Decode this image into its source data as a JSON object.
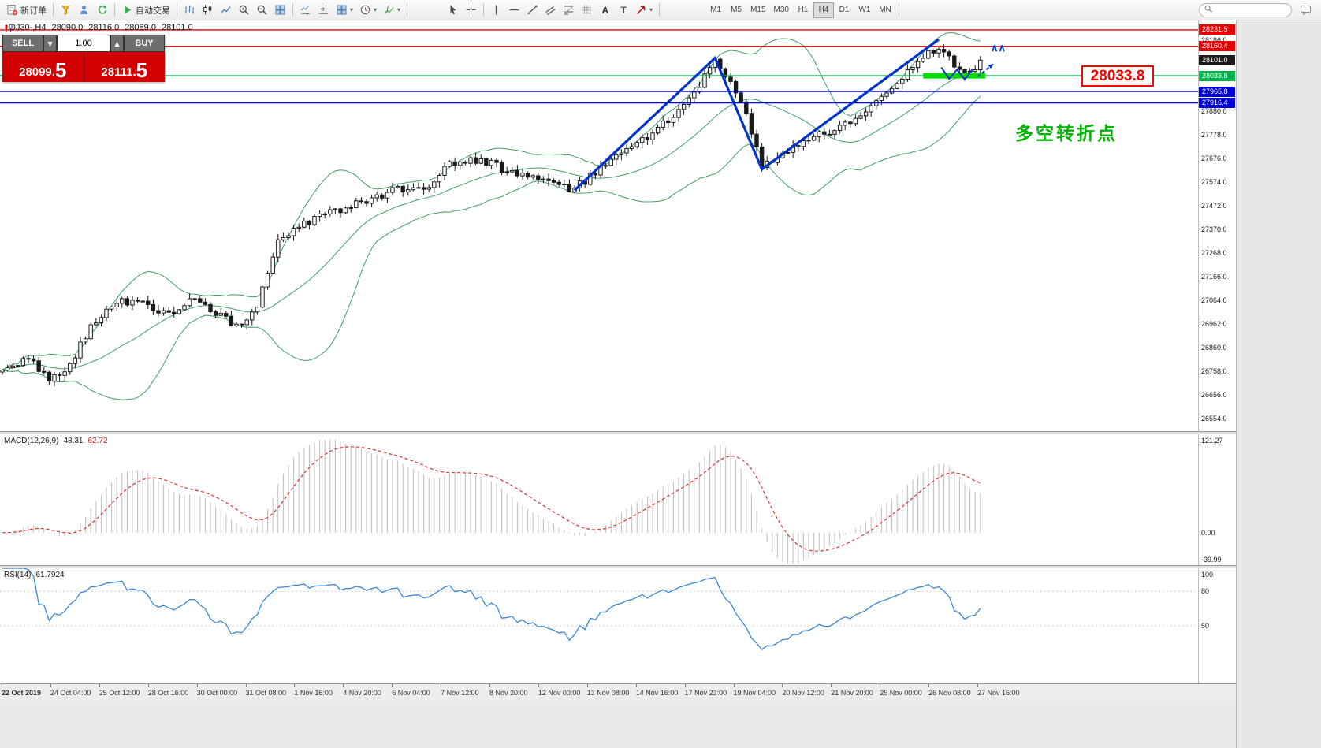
{
  "toolbar": {
    "groups": [
      {
        "items": [
          {
            "name": "new-order",
            "icon": "neworder",
            "label": "新订单"
          }
        ]
      },
      {
        "items": [
          {
            "name": "market-watch",
            "icon": "funnel"
          },
          {
            "name": "navigator",
            "icon": "person"
          },
          {
            "name": "refresh",
            "icon": "refresh"
          }
        ]
      },
      {
        "items": [
          {
            "name": "algo-trading",
            "icon": "play",
            "label": "自动交易"
          }
        ]
      },
      {
        "items": [
          {
            "name": "bar-chart",
            "icon": "bars"
          },
          {
            "name": "candlestick-chart",
            "icon": "candles"
          },
          {
            "name": "line-chart",
            "icon": "linechart"
          },
          {
            "name": "zoom-in",
            "icon": "zoomin"
          },
          {
            "name": "zoom-out",
            "icon": "zoomout"
          },
          {
            "name": "tile-windows",
            "icon": "tile"
          }
        ]
      },
      {
        "items": [
          {
            "name": "auto-scroll",
            "icon": "autoscroll"
          },
          {
            "name": "chart-shift",
            "icon": "shift"
          },
          {
            "name": "new-window",
            "icon": "tile",
            "caret": true
          },
          {
            "name": "periods",
            "icon": "clock",
            "caret": true
          },
          {
            "name": "indicators-list",
            "icon": "func",
            "caret": true
          }
        ]
      },
      {
        "space": 42,
        "items": [
          {
            "name": "cursor",
            "icon": "cursor"
          },
          {
            "name": "crosshair",
            "icon": "crosshair"
          }
        ]
      },
      {
        "items": [
          {
            "name": "vertical-line",
            "icon": "vline"
          },
          {
            "name": "horizontal-line",
            "icon": "hline"
          },
          {
            "name": "trendline",
            "icon": "trendline"
          },
          {
            "name": "equidistant-channel",
            "icon": "channel"
          },
          {
            "name": "fibonacci-retracement",
            "icon": "fibo"
          },
          {
            "name": "grid",
            "icon": "grid"
          },
          {
            "name": "text",
            "icon": "textA"
          },
          {
            "name": "text-label",
            "icon": "labelT"
          },
          {
            "name": "arrows",
            "icon": "arrowne",
            "caret": true
          }
        ]
      },
      {
        "space": 54,
        "timeframes": true
      }
    ],
    "timeframes": [
      "M1",
      "M5",
      "M15",
      "M30",
      "H1",
      "H4",
      "D1",
      "W1",
      "MN"
    ],
    "active_timeframe": "H4",
    "search_placeholder": ""
  },
  "chart_header": {
    "symbol_period": "DJ30-,H4",
    "open": "28090.0",
    "high": "28116.0",
    "low": "28089.0",
    "close": "28101.0"
  },
  "trade_panel": {
    "sell_label": "SELL",
    "buy_label": "BUY",
    "volume": "1.00",
    "sell_price": "28099.5",
    "buy_price": "28111.5"
  },
  "annotations": {
    "turning_point": "多空转折点",
    "price_callout": "28033.8",
    "caret_marks": "∧∧"
  },
  "indicators": {
    "macd": {
      "label": "MACD(12,26,9)",
      "value_main": "48.31",
      "value_signal": "62.72",
      "axis_labels": [
        {
          "text": "121.27",
          "v": 121.27
        },
        {
          "text": "0.00",
          "v": 0
        },
        {
          "text": "-39.99",
          "v": -39.99
        }
      ],
      "axis_max": 121.27,
      "axis_min": -39.99
    },
    "rsi": {
      "label": "RSI(14)",
      "value": "61.7924",
      "axis_labels": [
        {
          "text": "100",
          "v": 100
        },
        {
          "text": "80",
          "v": 80
        },
        {
          "text": "50",
          "v": 50
        }
      ],
      "levels": [
        80,
        50
      ],
      "axis_max": 100,
      "axis_min": 0
    }
  },
  "price_axis": {
    "plain_labels": [
      28186.0,
      27880.0,
      27778.0,
      27676.0,
      27574.0,
      27472.0,
      27370.0,
      27268.0,
      27166.0,
      27064.0,
      26962.0,
      26860.0,
      26758.0,
      26656.0,
      26554.0
    ]
  },
  "time_axis": {
    "labels": [
      "22 Oct 2019",
      "24 Oct 04:00",
      "25 Oct 12:00",
      "28 Oct 16:00",
      "30 Oct 00:00",
      "31 Oct 08:00",
      "1 Nov 16:00",
      "4 Nov 20:00",
      "6 Nov 04:00",
      "7 Nov 12:00",
      "8 Nov 20:00",
      "12 Nov 00:00",
      "13 Nov 08:00",
      "14 Nov 16:00",
      "17 Nov 23:00",
      "19 Nov 04:00",
      "20 Nov 12:00",
      "21 Nov 20:00",
      "25 Nov 00:00",
      "26 Nov 08:00",
      "27 Nov 16:00"
    ]
  },
  "chart_data": {
    "type": "candlestick",
    "symbol": "DJ30",
    "period": "H4",
    "ohlc_header": {
      "open": 28090.0,
      "high": 28116.0,
      "low": 28089.0,
      "close": 28101.0
    },
    "visible_price_range": [
      26500,
      28272
    ],
    "price_grid_step": 102,
    "candle_count": 189,
    "last_close": 28101.0,
    "close_anchors": [
      [
        0,
        26760
      ],
      [
        5,
        26810
      ],
      [
        9,
        26730
      ],
      [
        13,
        26780
      ],
      [
        17,
        26960
      ],
      [
        22,
        27060
      ],
      [
        28,
        27040
      ],
      [
        33,
        27000
      ],
      [
        37,
        27080
      ],
      [
        41,
        27010
      ],
      [
        45,
        26950
      ],
      [
        49,
        27040
      ],
      [
        53,
        27330
      ],
      [
        58,
        27390
      ],
      [
        64,
        27450
      ],
      [
        70,
        27500
      ],
      [
        76,
        27545
      ],
      [
        82,
        27560
      ],
      [
        86,
        27650
      ],
      [
        92,
        27675
      ],
      [
        97,
        27620
      ],
      [
        102,
        27590
      ],
      [
        106,
        27560
      ],
      [
        110,
        27545
      ],
      [
        114,
        27620
      ],
      [
        118,
        27690
      ],
      [
        122,
        27745
      ],
      [
        126,
        27805
      ],
      [
        130,
        27890
      ],
      [
        134,
        28000
      ],
      [
        137,
        28090
      ],
      [
        140,
        28010
      ],
      [
        143,
        27870
      ],
      [
        146,
        27635
      ],
      [
        150,
        27700
      ],
      [
        154,
        27745
      ],
      [
        158,
        27785
      ],
      [
        162,
        27825
      ],
      [
        166,
        27885
      ],
      [
        170,
        27955
      ],
      [
        174,
        28045
      ],
      [
        177,
        28115
      ],
      [
        180,
        28165
      ],
      [
        182,
        28110
      ],
      [
        184,
        28055
      ],
      [
        186,
        28040
      ],
      [
        188,
        28101
      ]
    ],
    "bollinger": {
      "period": 20,
      "deviation": 2,
      "color": "#3f9e63"
    },
    "macd_params": {
      "fast": 12,
      "slow": 26,
      "signal": 9,
      "histogram_color": "#bdbdbd",
      "signal_color": "#e03030"
    },
    "rsi_params": {
      "period": 14,
      "color": "#3a87d8"
    },
    "horizontal_lines": [
      {
        "price": 28231.5,
        "label": "28231.5",
        "color": "#e60000"
      },
      {
        "price": 28160.4,
        "label": "28160.4",
        "color": "#e60000"
      },
      {
        "price": 28101.0,
        "label": "28101.0",
        "color": "#1a1a1a",
        "line": false
      },
      {
        "price": 28033.8,
        "label": "28033.8",
        "color": "#00b44a"
      },
      {
        "price": 27965.8,
        "label": "27965.8",
        "color": "#0000dd"
      },
      {
        "price": 27916.4,
        "label": "27916.4",
        "color": "#0000dd"
      }
    ],
    "green_segment": {
      "price": 28033.8,
      "from_index": 177,
      "to_index": 189,
      "color": "#00dd00",
      "thickness": 7
    },
    "zigzag": {
      "color": "#0033cc",
      "main": [
        [
          110,
          27540
        ],
        [
          137,
          28110
        ],
        [
          146,
          27630
        ],
        [
          180,
          28190
        ]
      ],
      "squiggle": [
        [
          180.5,
          28070
        ],
        [
          182,
          28020
        ],
        [
          183.5,
          28060
        ],
        [
          185,
          28018
        ],
        [
          186.5,
          28062
        ]
      ],
      "arrow": [
        [
          187.5,
          28030
        ],
        [
          190.5,
          28085
        ]
      ],
      "caret_pos": [
        190,
        28140
      ]
    }
  }
}
